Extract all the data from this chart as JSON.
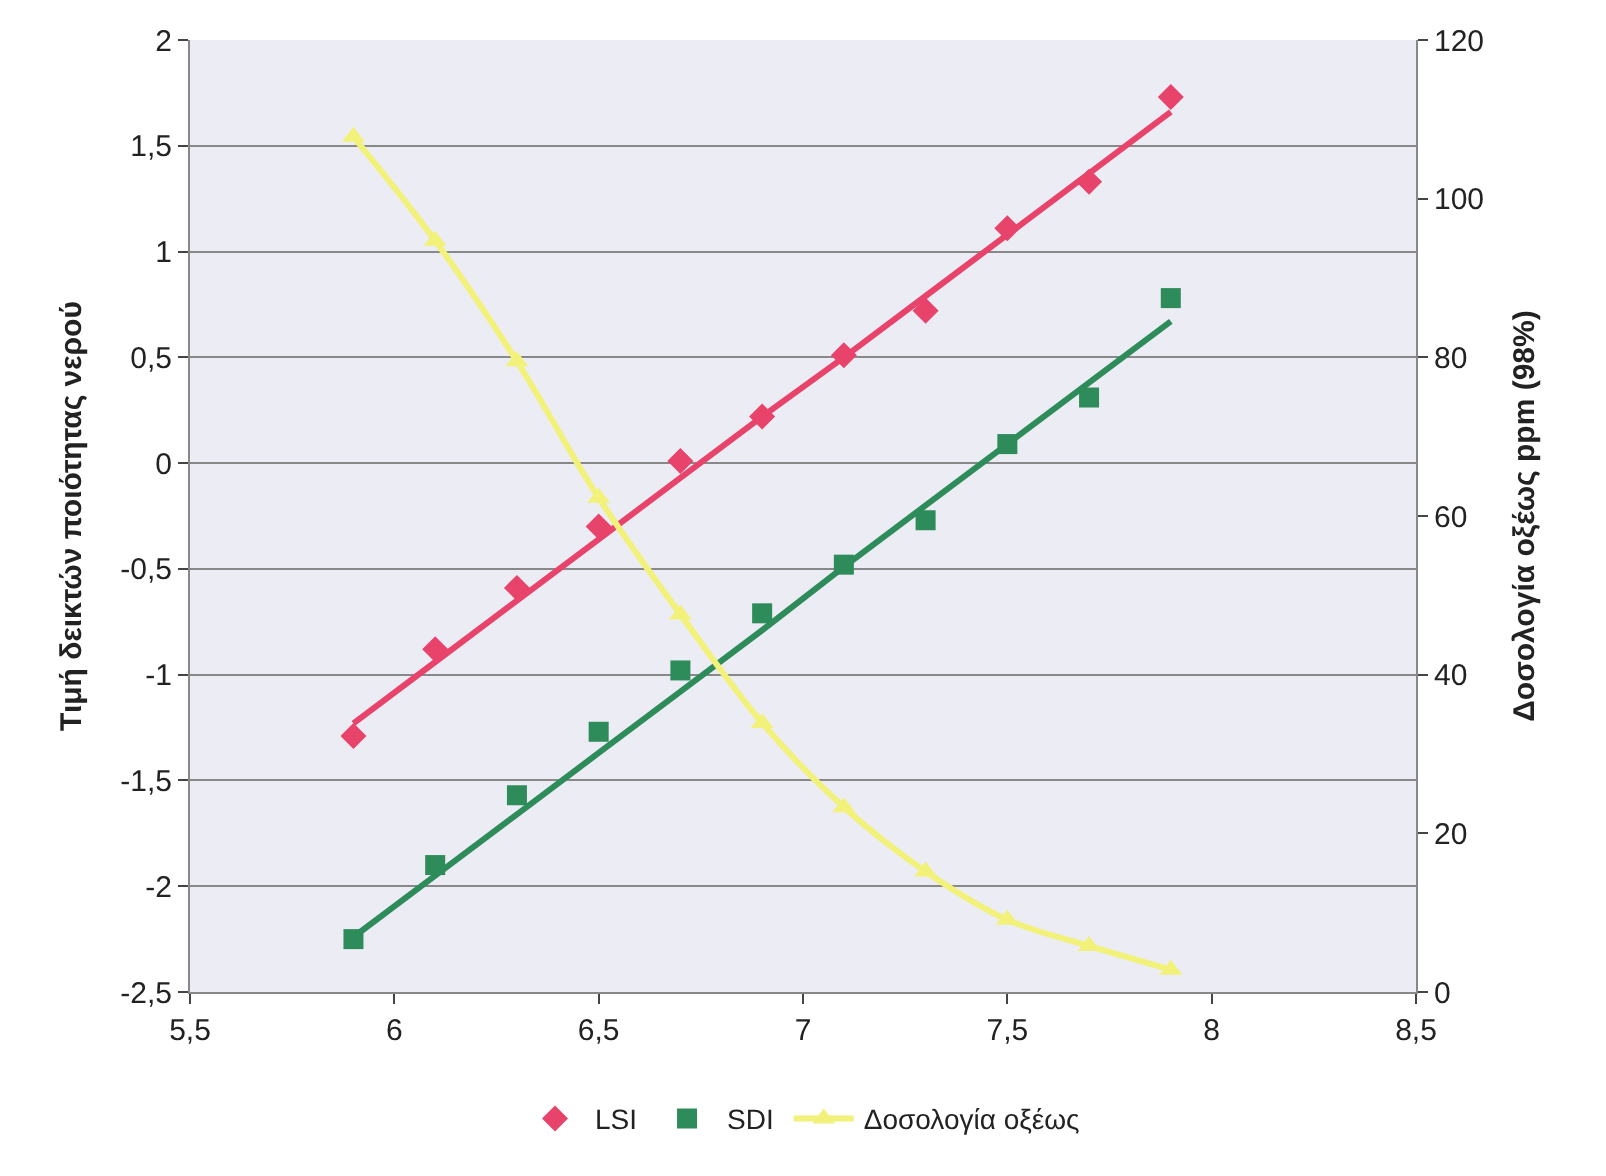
{
  "chart_data": {
    "type": "scatter",
    "ylabel": "Τιμή δεικτών ποιότητας νερού",
    "y2label": "Δοσολογία οξέως ppm (98%)",
    "x": [
      5.9,
      6.1,
      6.3,
      6.5,
      6.7,
      6.9,
      7.1,
      7.3,
      7.5,
      7.7,
      7.9
    ],
    "series": [
      {
        "name": "LSI",
        "marker": "diamond",
        "color": "#e8436a",
        "values": [
          -1.29,
          -0.88,
          -0.59,
          -0.3,
          0.01,
          0.22,
          0.51,
          0.72,
          1.11,
          1.33,
          1.73
        ]
      },
      {
        "name": "SDI",
        "marker": "square",
        "color": "#2e8b5a",
        "values": [
          -2.25,
          -1.9,
          -1.57,
          -1.27,
          -0.98,
          -0.71,
          -0.48,
          -0.27,
          0.09,
          0.31,
          0.78
        ]
      },
      {
        "name": "Δοσολογία οξέως",
        "type": "line",
        "marker": "triangle",
        "axis": "y2",
        "color": "#f2f27a",
        "values": [
          107.8,
          94.7,
          79.5,
          62.3,
          47.6,
          33.9,
          23.3,
          15.2,
          9.1,
          5.8,
          2.8
        ]
      },
      {
        "type": "line",
        "marker": "none",
        "color": "#e8436a",
        "values": [
          -1.23,
          -0.94,
          -0.65,
          -0.36,
          -0.07,
          0.22,
          0.5,
          0.79,
          1.08,
          1.37,
          1.66
        ]
      },
      {
        "type": "line",
        "marker": "none",
        "color": "#2e8b5a",
        "values": [
          -2.24,
          -1.95,
          -1.66,
          -1.37,
          -1.08,
          -0.79,
          -0.49,
          -0.2,
          0.09,
          0.38,
          0.67
        ]
      }
    ],
    "xlim": [
      5.5,
      8.5
    ],
    "xticks": [
      {
        "value": 5.5,
        "label": "5,5"
      },
      6,
      {
        "value": 6.5,
        "label": "6,5"
      },
      7,
      {
        "value": 7.5,
        "label": "7,5"
      },
      8,
      {
        "value": 8.5,
        "label": "8,5"
      }
    ],
    "ylim": [
      -2.5,
      2
    ],
    "yticks": [
      {
        "value": -2.5,
        "label": "-2,5"
      },
      -2,
      {
        "value": -1.5,
        "label": "-1,5"
      },
      -1,
      {
        "value": -0.5,
        "label": "-0,5"
      },
      0,
      {
        "value": 0.5,
        "label": "0,5"
      },
      1,
      {
        "value": 1.5,
        "label": "1,5"
      },
      2
    ],
    "y2lim": [
      0,
      120
    ],
    "y2ticks": [
      0,
      20,
      40,
      60,
      80,
      100,
      120
    ],
    "grid": "y",
    "legend": "bottom"
  }
}
